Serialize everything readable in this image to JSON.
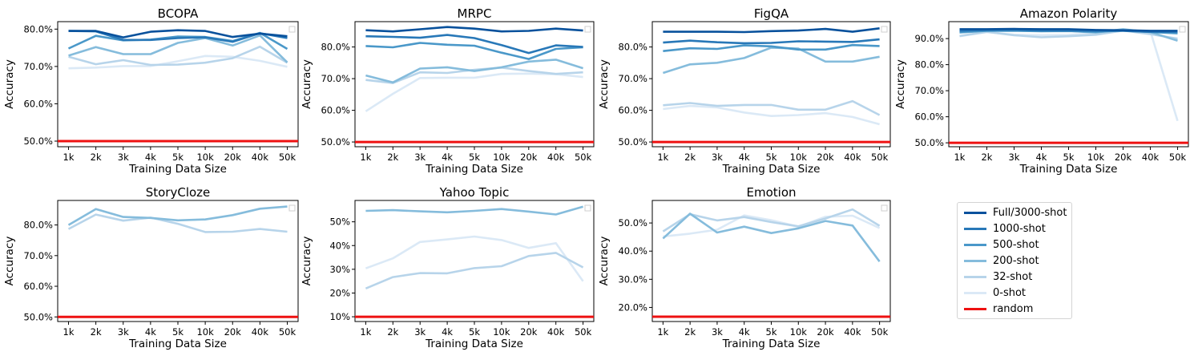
{
  "legend": {
    "entries": [
      {
        "label": "Full/3000-shot",
        "color": "#08519c"
      },
      {
        "label": "1000-shot",
        "color": "#2878b8"
      },
      {
        "label": "500-shot",
        "color": "#4a98c9"
      },
      {
        "label": "200-shot",
        "color": "#85bcdc"
      },
      {
        "label": "32-shot",
        "color": "#b7d4ea"
      },
      {
        "label": "0-shot",
        "color": "#dbe9f6"
      },
      {
        "label": "random",
        "color": "#ee1111"
      }
    ]
  },
  "chart_data": [
    {
      "type": "line",
      "title": "BCOPA",
      "xlabel": "Training Data Size",
      "ylabel": "Accuracy",
      "categories": [
        "1k",
        "2k",
        "3k",
        "4k",
        "5k",
        "10k",
        "20k",
        "40k",
        "50k"
      ],
      "ylim": [
        48.5,
        82
      ],
      "yticks": [
        50,
        60,
        70,
        80
      ],
      "ytick_labels": [
        "50.0%",
        "60.0%",
        "70.0%",
        "80.0%"
      ],
      "random": 50,
      "series": [
        {
          "name": "Full/3000-shot",
          "values": [
            79.5,
            79.5,
            77.8,
            79.3,
            79.7,
            79.5,
            77.9,
            78.8,
            78.1
          ]
        },
        {
          "name": "1000-shot",
          "values": [
            79.5,
            79.4,
            77.1,
            77.1,
            77.6,
            77.8,
            76.6,
            78.9,
            77.6
          ]
        },
        {
          "name": "500-shot",
          "values": [
            74.8,
            78.2,
            77.0,
            77.2,
            78.0,
            77.9,
            76.8,
            79.0,
            74.7
          ]
        },
        {
          "name": "200-shot",
          "values": [
            72.9,
            75.2,
            73.3,
            73.3,
            76.3,
            77.6,
            75.6,
            78.3,
            71.1
          ]
        },
        {
          "name": "32-shot",
          "values": [
            72.6,
            70.6,
            71.7,
            70.4,
            70.5,
            71.0,
            72.2,
            75.3,
            71.0
          ]
        },
        {
          "name": "0-shot",
          "values": [
            69.5,
            69.7,
            70.1,
            70.1,
            71.4,
            72.8,
            72.6,
            71.5,
            69.9
          ]
        }
      ]
    },
    {
      "type": "line",
      "title": "MRPC",
      "xlabel": "Training Data Size",
      "ylabel": "Accuracy",
      "categories": [
        "1k",
        "2k",
        "3k",
        "4k",
        "5k",
        "10k",
        "20k",
        "40k",
        "50k"
      ],
      "ylim": [
        48.5,
        88
      ],
      "yticks": [
        50,
        60,
        70,
        80
      ],
      "ytick_labels": [
        "50.0%",
        "60.0%",
        "70.0%",
        "80.0%"
      ],
      "random": 50,
      "series": [
        {
          "name": "Full/3000-shot",
          "values": [
            85.3,
            84.9,
            85.6,
            86.3,
            85.8,
            84.9,
            85.1,
            85.8,
            85.2
          ]
        },
        {
          "name": "1000-shot",
          "values": [
            83.4,
            83.2,
            82.9,
            83.8,
            82.8,
            80.6,
            78.1,
            80.5,
            80.0
          ]
        },
        {
          "name": "500-shot",
          "values": [
            80.3,
            79.9,
            81.3,
            80.7,
            80.4,
            78.2,
            76.2,
            79.4,
            79.9
          ]
        },
        {
          "name": "200-shot",
          "values": [
            71.0,
            68.8,
            73.2,
            73.6,
            72.4,
            73.6,
            75.4,
            76.0,
            73.3
          ]
        },
        {
          "name": "32-shot",
          "values": [
            69.6,
            68.6,
            72.0,
            71.8,
            72.8,
            73.5,
            72.4,
            71.5,
            72.0
          ]
        },
        {
          "name": "0-shot",
          "values": [
            59.7,
            65.2,
            70.2,
            70.3,
            70.3,
            71.5,
            71.6,
            71.4,
            70.5
          ]
        }
      ]
    },
    {
      "type": "line",
      "title": "FigQA",
      "xlabel": "Training Data Size",
      "ylabel": "Accuracy",
      "categories": [
        "1k",
        "2k",
        "3k",
        "4k",
        "5k",
        "10k",
        "20k",
        "40k",
        "50k"
      ],
      "ylim": [
        48.5,
        88
      ],
      "yticks": [
        50,
        60,
        70,
        80
      ],
      "ytick_labels": [
        "50.0%",
        "60.0%",
        "70.0%",
        "80.0%"
      ],
      "random": 50,
      "series": [
        {
          "name": "Full/3000-shot",
          "values": [
            84.8,
            84.8,
            84.8,
            84.7,
            85.0,
            85.2,
            85.7,
            84.8,
            85.9
          ]
        },
        {
          "name": "1000-shot",
          "values": [
            81.4,
            82.0,
            81.5,
            81.2,
            81.3,
            81.8,
            81.7,
            81.6,
            82.4
          ]
        },
        {
          "name": "500-shot",
          "values": [
            78.7,
            79.6,
            79.4,
            80.5,
            80.2,
            79.2,
            79.2,
            80.6,
            80.3
          ]
        },
        {
          "name": "200-shot",
          "values": [
            71.8,
            74.5,
            75.0,
            76.5,
            79.8,
            79.5,
            75.4,
            75.4,
            76.9
          ]
        },
        {
          "name": "32-shot",
          "values": [
            61.6,
            62.3,
            61.4,
            61.7,
            61.7,
            60.2,
            60.2,
            62.9,
            58.5
          ]
        },
        {
          "name": "0-shot",
          "values": [
            60.4,
            61.4,
            60.9,
            59.3,
            58.2,
            58.5,
            59.1,
            57.9,
            55.6
          ]
        }
      ]
    },
    {
      "type": "line",
      "title": "Amazon Polarity",
      "xlabel": "Training Data Size",
      "ylabel": "Accuracy",
      "categories": [
        "1k",
        "2k",
        "3k",
        "4k",
        "5k",
        "10k",
        "20k",
        "40k",
        "50k"
      ],
      "ylim": [
        48.5,
        96.5
      ],
      "yticks": [
        50,
        60,
        70,
        80,
        90
      ],
      "ytick_labels": [
        "50.0%",
        "60.0%",
        "70.0%",
        "80.0%",
        "90.0%"
      ],
      "random": 50,
      "series": [
        {
          "name": "Full/3000-shot",
          "values": [
            93.6,
            93.6,
            93.7,
            93.6,
            93.6,
            93.3,
            93.2,
            93.0,
            93.0
          ]
        },
        {
          "name": "1000-shot",
          "values": [
            93.0,
            93.3,
            93.4,
            93.1,
            93.1,
            93.0,
            93.0,
            92.6,
            92.6
          ]
        },
        {
          "name": "500-shot",
          "values": [
            92.5,
            93.0,
            93.0,
            92.8,
            92.9,
            92.6,
            93.1,
            92.5,
            92.0
          ]
        },
        {
          "name": "200-shot",
          "values": [
            92.3,
            93.0,
            93.3,
            93.2,
            93.0,
            92.3,
            93.6,
            92.5,
            89.2
          ]
        },
        {
          "name": "32-shot",
          "values": [
            91.0,
            92.6,
            91.3,
            90.5,
            90.9,
            91.5,
            93.1,
            91.7,
            90.0
          ]
        },
        {
          "name": "0-shot",
          "values": [
            90.9,
            92.5,
            91.5,
            91.3,
            91.4,
            92.1,
            93.2,
            92.9,
            58.4
          ]
        }
      ]
    },
    {
      "type": "line",
      "title": "StoryCloze",
      "xlabel": "Training Data Size",
      "ylabel": "Accuracy",
      "categories": [
        "1k",
        "2k",
        "3k",
        "4k",
        "5k",
        "10k",
        "20k",
        "40k",
        "50k"
      ],
      "ylim": [
        48.5,
        88
      ],
      "yticks": [
        50,
        60,
        70,
        80
      ],
      "ytick_labels": [
        "50.0%",
        "60.0%",
        "70.0%",
        "80.0%"
      ],
      "random": 50,
      "series": [
        {
          "name": "200-shot",
          "values": [
            80.0,
            85.2,
            82.6,
            82.3,
            81.5,
            81.8,
            83.2,
            85.3,
            86.0
          ]
        },
        {
          "name": "32-shot",
          "values": [
            78.7,
            83.4,
            81.4,
            82.4,
            80.4,
            77.7,
            77.8,
            78.7,
            77.8
          ]
        }
      ]
    },
    {
      "type": "line",
      "title": "Yahoo Topic",
      "xlabel": "Training Data Size",
      "ylabel": "Accuracy",
      "categories": [
        "1k",
        "2k",
        "3k",
        "4k",
        "5k",
        "10k",
        "20k",
        "40k",
        "50k"
      ],
      "ylim": [
        8,
        59
      ],
      "yticks": [
        10,
        20,
        30,
        40,
        50
      ],
      "ytick_labels": [
        "10%",
        "20%",
        "30%",
        "40%",
        "50%"
      ],
      "random": 10,
      "series": [
        {
          "name": "200-shot",
          "values": [
            54.6,
            54.9,
            54.4,
            54.0,
            54.6,
            55.4,
            54.3,
            53.1,
            56.4
          ]
        },
        {
          "name": "32-shot",
          "values": [
            21.9,
            26.7,
            28.4,
            28.3,
            30.5,
            31.3,
            35.6,
            36.9,
            30.8
          ]
        },
        {
          "name": "0-shot",
          "values": [
            30.4,
            34.6,
            41.5,
            42.6,
            43.8,
            42.3,
            39.0,
            41.0,
            25.0
          ]
        }
      ]
    },
    {
      "type": "line",
      "title": "Emotion",
      "xlabel": "Training Data Size",
      "ylabel": "Accuracy",
      "categories": [
        "1k",
        "2k",
        "3k",
        "4k",
        "5k",
        "10k",
        "20k",
        "40k",
        "50k"
      ],
      "ylim": [
        15,
        58
      ],
      "yticks": [
        20,
        30,
        40,
        50
      ],
      "ytick_labels": [
        "20.0%",
        "30.0%",
        "40.0%",
        "50.0%"
      ],
      "random": 16.7,
      "series": [
        {
          "name": "200-shot",
          "values": [
            44.5,
            53.3,
            46.6,
            48.7,
            46.4,
            48.1,
            50.7,
            49.1,
            36.3
          ]
        },
        {
          "name": "32-shot",
          "values": [
            47.0,
            53.1,
            50.9,
            52.1,
            50.3,
            48.8,
            51.6,
            54.8,
            49.0
          ]
        },
        {
          "name": "0-shot",
          "values": [
            45.2,
            46.2,
            47.6,
            52.7,
            51.0,
            48.7,
            52.2,
            52.6,
            48.2
          ]
        }
      ]
    }
  ]
}
